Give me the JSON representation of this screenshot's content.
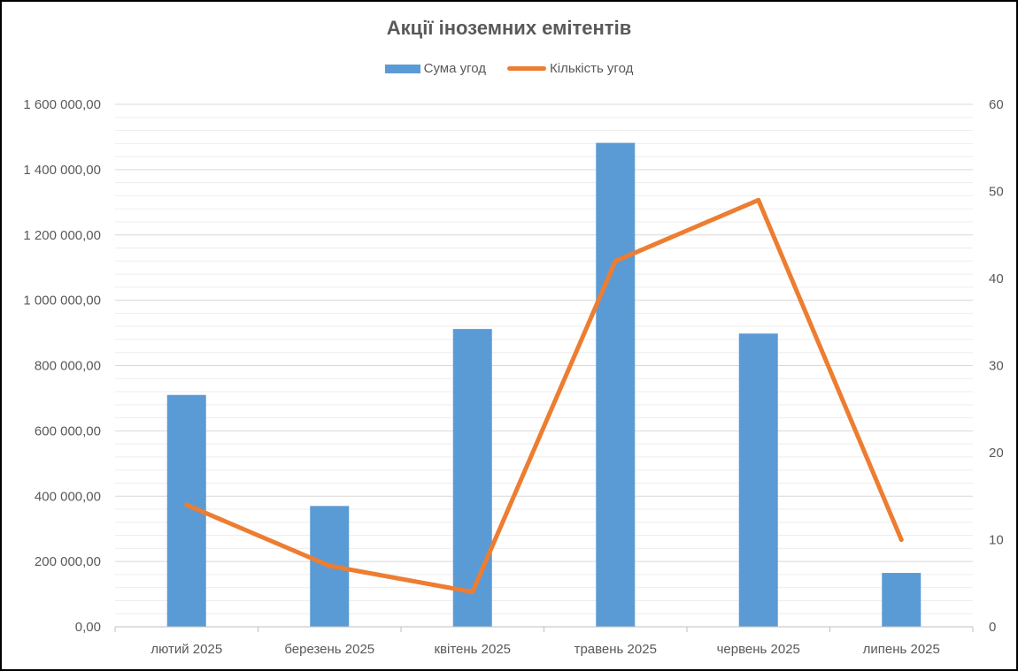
{
  "colors": {
    "bar": "#5B9BD5",
    "line": "#ED7D31",
    "major_grid": "#D9D9D9",
    "minor_grid": "#EDEDED",
    "axis": "#BFBFBF",
    "text": "#595959"
  },
  "chart_data": {
    "type": "bar",
    "title": "Акції іноземних емітентів",
    "categories": [
      "лютий 2025",
      "березень 2025",
      "квітень 2025",
      "травень 2025",
      "червень 2025",
      "липень 2025"
    ],
    "series": [
      {
        "name": "Сума угод",
        "type": "bar",
        "axis": "left",
        "values": [
          710000,
          370000,
          912000,
          1482000,
          898000,
          165000
        ]
      },
      {
        "name": "Кількість угод",
        "type": "line",
        "axis": "right",
        "values": [
          14,
          7,
          4,
          42,
          49,
          10
        ]
      }
    ],
    "ylim_left": [
      0,
      1600000
    ],
    "ylim_right": [
      0,
      60
    ],
    "left_ticks": [
      "0,00",
      "200 000,00",
      "400 000,00",
      "600 000,00",
      "800 000,00",
      "1 000 000,00",
      "1 200 000,00",
      "1 400 000,00",
      "1 600 000,00"
    ],
    "right_ticks": [
      "0",
      "10",
      "20",
      "30",
      "40",
      "50",
      "60"
    ],
    "grid": true,
    "legend_position": "top"
  }
}
